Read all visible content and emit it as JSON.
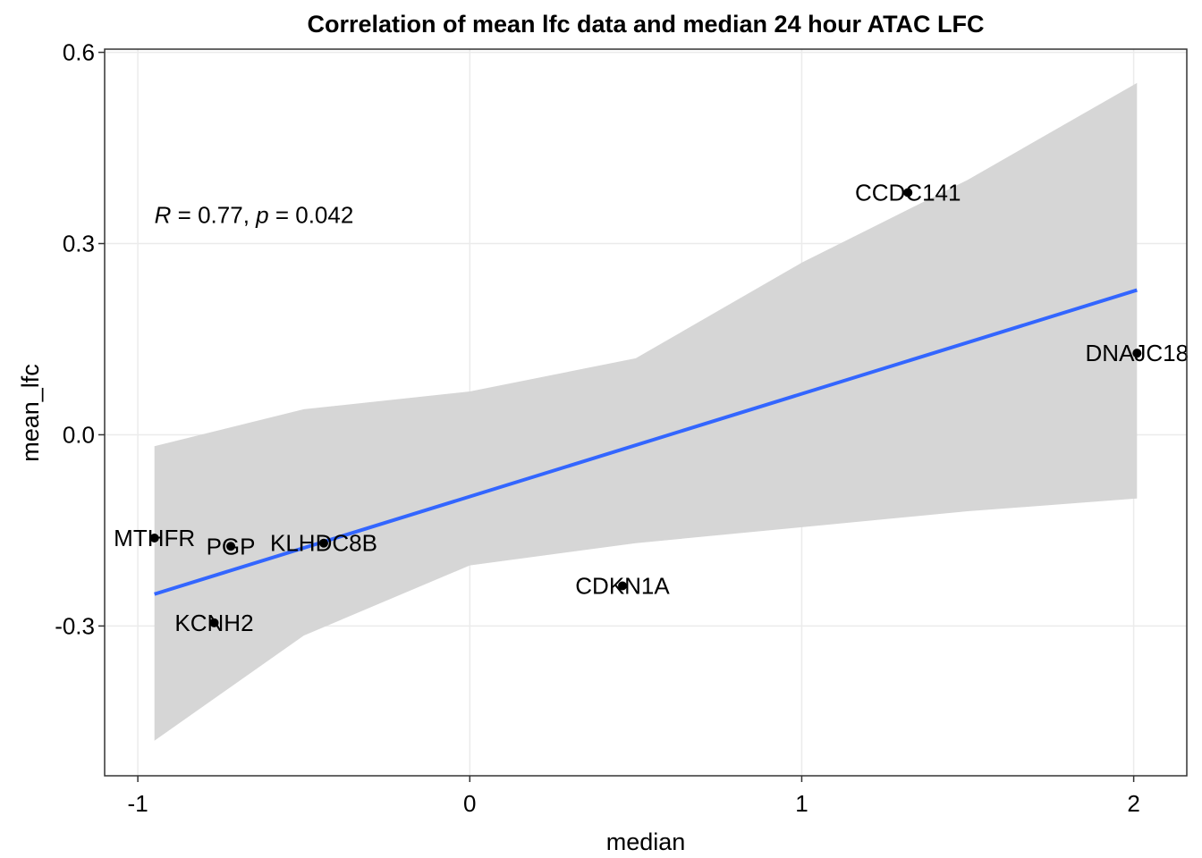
{
  "chart_data": {
    "type": "scatter",
    "title": "Correlation of mean lfc data and median 24 hour ATAC LFC",
    "xlabel": "median",
    "ylabel": "mean_lfc",
    "xlim": [
      -1.1,
      2.16
    ],
    "ylim": [
      -0.535,
      0.605
    ],
    "x_ticks": [
      -1,
      0,
      1,
      2
    ],
    "x_tick_labels": [
      "-1",
      "0",
      "1",
      "2"
    ],
    "y_ticks": [
      -0.3,
      0.0,
      0.3,
      0.6
    ],
    "y_tick_labels": [
      "-0.3",
      "0.0",
      "0.3",
      "0.6"
    ],
    "grid": true,
    "annotation": {
      "R_symbol": "R",
      "r_value_text": " = 0.77, ",
      "p_symbol": "p",
      "p_value_text": " = 0.042",
      "x": -0.95,
      "y": 0.345
    },
    "points": [
      {
        "label": "CCDC141",
        "x": 1.32,
        "y": 0.38
      },
      {
        "label": "DNAJC18",
        "x": 2.01,
        "y": 0.128
      },
      {
        "label": "MTHFR",
        "x": -0.95,
        "y": -0.162
      },
      {
        "label": "PGP",
        "x": -0.72,
        "y": -0.175
      },
      {
        "label": "KLHDC8B",
        "x": -0.44,
        "y": -0.17
      },
      {
        "label": "CDKN1A",
        "x": 0.46,
        "y": -0.237
      },
      {
        "label": "KCNH2",
        "x": -0.77,
        "y": -0.295
      }
    ],
    "regression": {
      "x": [
        -0.95,
        2.01
      ],
      "y": [
        -0.25,
        0.227
      ],
      "line_color": "#3366FF"
    },
    "confidence_band": {
      "x": [
        -0.95,
        -0.5,
        0.0,
        0.5,
        1.0,
        1.5,
        2.01
      ],
      "upper": [
        -0.018,
        0.04,
        0.068,
        0.12,
        0.27,
        0.4,
        0.552
      ],
      "lower": [
        -0.48,
        -0.315,
        -0.205,
        -0.17,
        -0.145,
        -0.12,
        -0.1
      ],
      "fill_color": "#D6D6D6"
    },
    "colors": {
      "grid": "#EBEBEB",
      "panel_border": "#333333",
      "point": "#000000"
    }
  }
}
